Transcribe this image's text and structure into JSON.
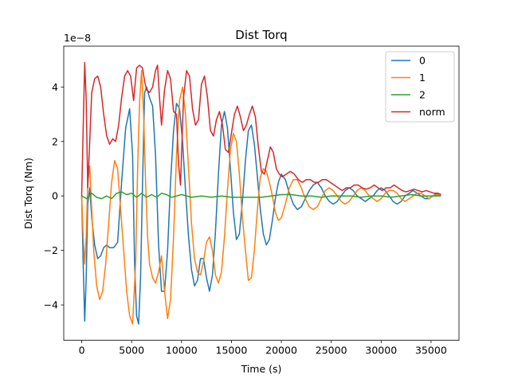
{
  "chart_data": {
    "type": "line",
    "title": "Dist Torq",
    "xlabel": "Time (s)",
    "ylabel": "Dist Torq (Nm)",
    "y_multiplier_label": "1e−8",
    "xlim": [
      -1800,
      37800
    ],
    "ylim": [
      -5.3,
      5.5
    ],
    "x_ticks": [
      0,
      5000,
      10000,
      15000,
      20000,
      25000,
      30000,
      35000
    ],
    "x_tick_labels": [
      "0",
      "5000",
      "10000",
      "15000",
      "20000",
      "25000",
      "30000",
      "35000"
    ],
    "y_ticks": [
      -4,
      -2,
      0,
      2,
      4
    ],
    "y_tick_labels": [
      "−4",
      "−2",
      "0",
      "2",
      "4"
    ],
    "grid": false,
    "legend_position": "top-right",
    "series": [
      {
        "name": "0",
        "color": "#1f77b4",
        "x": [
          0,
          150,
          300,
          450,
          600,
          800,
          1000,
          1300,
          1600,
          1900,
          2200,
          2500,
          2800,
          3200,
          3600,
          4000,
          4400,
          4800,
          5100,
          5300,
          5500,
          5700,
          5900,
          6100,
          6300,
          6500,
          6800,
          7100,
          7400,
          7700,
          8000,
          8300,
          8600,
          8900,
          9200,
          9500,
          9800,
          10100,
          10400,
          10700,
          11000,
          11300,
          11600,
          11900,
          12200,
          12500,
          12800,
          13100,
          13400,
          13700,
          14000,
          14300,
          14600,
          14900,
          15200,
          15500,
          15800,
          16100,
          16400,
          16700,
          17000,
          17300,
          17600,
          17900,
          18200,
          18500,
          18800,
          19100,
          19400,
          19700,
          20000,
          20400,
          20800,
          21200,
          21600,
          22000,
          22400,
          22800,
          23200,
          23600,
          24000,
          24400,
          24800,
          25200,
          25600,
          26000,
          26400,
          26800,
          27200,
          27600,
          28000,
          28400,
          28800,
          29200,
          29600,
          30000,
          30400,
          30800,
          31200,
          31600,
          32000,
          32400,
          32800,
          33200,
          33600,
          34000,
          34400,
          34800,
          35200,
          35600,
          36000
        ],
        "values": [
          0.0,
          -2.5,
          -4.6,
          -3.0,
          -0.3,
          0.3,
          -0.8,
          -1.8,
          -2.3,
          -2.2,
          -1.9,
          -1.8,
          -1.9,
          -1.9,
          -1.7,
          0.5,
          2.5,
          3.2,
          1.5,
          -2.5,
          -4.4,
          -4.7,
          -3.0,
          0.5,
          3.8,
          4.0,
          3.6,
          3.3,
          1.5,
          -1.8,
          -3.5,
          -3.5,
          -2.0,
          0.5,
          2.4,
          3.4,
          3.2,
          2.0,
          0.2,
          -1.5,
          -2.7,
          -3.3,
          -3.1,
          -2.3,
          -2.3,
          -3.0,
          -3.5,
          -2.9,
          -1.3,
          0.8,
          2.6,
          3.1,
          2.5,
          1.0,
          -0.6,
          -1.6,
          -1.4,
          -0.2,
          1.3,
          2.4,
          2.6,
          1.9,
          0.7,
          -0.5,
          -1.4,
          -1.8,
          -1.6,
          -0.9,
          -0.1,
          0.5,
          0.8,
          0.6,
          0.1,
          -0.3,
          -0.5,
          -0.4,
          -0.1,
          0.2,
          0.4,
          0.5,
          0.3,
          0.0,
          -0.2,
          -0.3,
          -0.2,
          0.0,
          0.2,
          0.3,
          0.2,
          0.0,
          -0.1,
          -0.2,
          -0.1,
          0.0,
          0.2,
          0.3,
          0.2,
          0.0,
          -0.2,
          -0.3,
          -0.2,
          0.0,
          0.1,
          0.2,
          0.1,
          0.0,
          -0.1,
          -0.1,
          0.0,
          0.1,
          0.05
        ]
      },
      {
        "name": "1",
        "color": "#ff7f0e",
        "x": [
          0,
          150,
          300,
          450,
          600,
          800,
          1000,
          1200,
          1500,
          1800,
          2100,
          2400,
          2700,
          3000,
          3300,
          3600,
          3900,
          4200,
          4500,
          4800,
          5100,
          5400,
          5600,
          5800,
          6000,
          6200,
          6400,
          6600,
          6800,
          7100,
          7400,
          7700,
          8000,
          8300,
          8600,
          8900,
          9200,
          9500,
          9800,
          10100,
          10400,
          10700,
          11000,
          11300,
          11600,
          11900,
          12200,
          12500,
          12800,
          13100,
          13400,
          13700,
          14000,
          14300,
          14600,
          14900,
          15200,
          15500,
          15800,
          16100,
          16400,
          16700,
          17000,
          17300,
          17600,
          17900,
          18200,
          18500,
          18800,
          19100,
          19400,
          19700,
          20000,
          20400,
          20800,
          21200,
          21600,
          22000,
          22400,
          22800,
          23200,
          23600,
          24000,
          24400,
          24800,
          25200,
          25600,
          26000,
          26400,
          26800,
          27200,
          27600,
          28000,
          28400,
          28800,
          29200,
          29600,
          30000,
          30400,
          30800,
          31200,
          31600,
          32000,
          32400,
          32800,
          33200,
          33600,
          34000,
          34400,
          34800,
          35200,
          35600,
          36000
        ],
        "values": [
          0.0,
          -1.5,
          -2.5,
          -1.5,
          0.5,
          1.1,
          -0.5,
          -2.0,
          -3.3,
          -3.8,
          -3.5,
          -2.5,
          -1.0,
          0.5,
          1.3,
          1.0,
          -0.5,
          -2.0,
          -3.5,
          -4.4,
          -4.7,
          -2.5,
          1.0,
          3.5,
          4.6,
          3.0,
          0.5,
          -1.5,
          -2.5,
          -3.0,
          -3.2,
          -2.8,
          -2.2,
          -3.5,
          -4.5,
          -3.8,
          -1.5,
          1.5,
          3.5,
          4.0,
          3.0,
          1.0,
          -1.0,
          -2.3,
          -2.8,
          -2.9,
          -2.4,
          -1.7,
          -1.5,
          -2.0,
          -2.9,
          -3.2,
          -2.8,
          -1.5,
          0.2,
          1.7,
          2.3,
          2.0,
          0.8,
          -0.8,
          -2.0,
          -3.1,
          -3.0,
          -2.0,
          -0.5,
          0.7,
          1.0,
          0.9,
          0.5,
          0.0,
          -0.6,
          -0.9,
          -0.8,
          -0.3,
          0.3,
          0.6,
          0.6,
          0.3,
          -0.1,
          -0.4,
          -0.5,
          -0.4,
          -0.1,
          0.2,
          0.3,
          0.2,
          0.0,
          -0.2,
          -0.3,
          -0.2,
          0.0,
          0.2,
          0.3,
          0.2,
          0.0,
          -0.1,
          -0.2,
          -0.1,
          0.1,
          0.2,
          0.2,
          0.1,
          -0.1,
          -0.2,
          -0.1,
          0.0,
          0.1,
          0.1,
          0.0,
          -0.1,
          0.0,
          0.05,
          0.0
        ]
      },
      {
        "name": "2",
        "color": "#2ca02c",
        "x": [
          0,
          500,
          1000,
          1500,
          2000,
          2500,
          3000,
          3500,
          4000,
          4500,
          5000,
          5500,
          6000,
          6500,
          7000,
          7500,
          8000,
          8500,
          9000,
          9500,
          10000,
          11000,
          12000,
          13000,
          14000,
          15000,
          16000,
          17000,
          18000,
          19000,
          20000,
          21000,
          22000,
          23000,
          24000,
          25000,
          26000,
          27000,
          28000,
          29000,
          30000,
          31000,
          32000,
          33000,
          34000,
          35000,
          36000
        ],
        "values": [
          0.0,
          -0.1,
          0.1,
          -0.05,
          -0.1,
          0.0,
          -0.1,
          0.1,
          0.15,
          0.05,
          0.1,
          -0.05,
          0.1,
          -0.05,
          0.05,
          -0.05,
          0.1,
          0.05,
          -0.05,
          0.0,
          0.05,
          -0.05,
          0.0,
          -0.05,
          0.0,
          -0.05,
          -0.05,
          -0.05,
          -0.05,
          0.0,
          0.05,
          0.05,
          0.0,
          0.0,
          -0.05,
          0.0,
          0.0,
          0.0,
          -0.05,
          0.0,
          0.0,
          -0.05,
          0.0,
          0.05,
          0.0,
          0.0,
          0.0
        ]
      },
      {
        "name": "norm",
        "color": "#d62728",
        "x": [
          0,
          150,
          300,
          450,
          600,
          800,
          1000,
          1300,
          1600,
          1900,
          2200,
          2500,
          2800,
          3100,
          3400,
          3700,
          4000,
          4300,
          4600,
          4900,
          5200,
          5500,
          5800,
          6100,
          6300,
          6500,
          6800,
          7100,
          7400,
          7600,
          7800,
          8000,
          8300,
          8600,
          8900,
          9200,
          9500,
          9700,
          9900,
          10200,
          10500,
          10800,
          11100,
          11400,
          11700,
          12000,
          12300,
          12600,
          12900,
          13200,
          13500,
          13800,
          14100,
          14400,
          14700,
          15000,
          15300,
          15600,
          15900,
          16200,
          16500,
          16800,
          17100,
          17400,
          17700,
          18000,
          18300,
          18600,
          18900,
          19200,
          19500,
          19800,
          20100,
          20500,
          20900,
          21300,
          21700,
          22100,
          22500,
          22900,
          23300,
          23700,
          24100,
          24500,
          24900,
          25300,
          25700,
          26100,
          26500,
          26900,
          27300,
          27700,
          28100,
          28500,
          28900,
          29300,
          29700,
          30100,
          30500,
          30900,
          31300,
          31700,
          32100,
          32500,
          32900,
          33300,
          33700,
          34100,
          34500,
          34900,
          35300,
          35700,
          36000
        ],
        "values": [
          0.0,
          2.5,
          4.9,
          3.5,
          0.3,
          2.0,
          3.8,
          4.3,
          4.4,
          4.0,
          3.0,
          2.2,
          1.9,
          2.1,
          2.0,
          2.6,
          3.6,
          4.4,
          4.6,
          4.4,
          3.5,
          4.7,
          4.8,
          4.7,
          4.2,
          3.9,
          3.8,
          4.0,
          4.6,
          4.8,
          3.6,
          2.6,
          3.9,
          4.6,
          4.3,
          3.1,
          3.0,
          1.2,
          0.4,
          3.6,
          4.6,
          4.4,
          3.2,
          2.6,
          2.8,
          4.1,
          4.4,
          3.6,
          2.4,
          2.2,
          2.8,
          3.1,
          2.6,
          1.7,
          1.6,
          2.3,
          3.0,
          3.3,
          2.9,
          2.4,
          2.6,
          3.0,
          3.3,
          2.9,
          1.8,
          0.9,
          0.8,
          1.3,
          1.8,
          1.6,
          1.0,
          0.8,
          0.7,
          0.8,
          0.9,
          0.8,
          0.6,
          0.5,
          0.6,
          0.6,
          0.5,
          0.5,
          0.6,
          0.6,
          0.5,
          0.4,
          0.3,
          0.2,
          0.3,
          0.3,
          0.4,
          0.4,
          0.3,
          0.25,
          0.3,
          0.4,
          0.3,
          0.2,
          0.3,
          0.3,
          0.4,
          0.3,
          0.2,
          0.15,
          0.2,
          0.25,
          0.2,
          0.15,
          0.2,
          0.15,
          0.1,
          0.1,
          0.05
        ]
      }
    ]
  }
}
